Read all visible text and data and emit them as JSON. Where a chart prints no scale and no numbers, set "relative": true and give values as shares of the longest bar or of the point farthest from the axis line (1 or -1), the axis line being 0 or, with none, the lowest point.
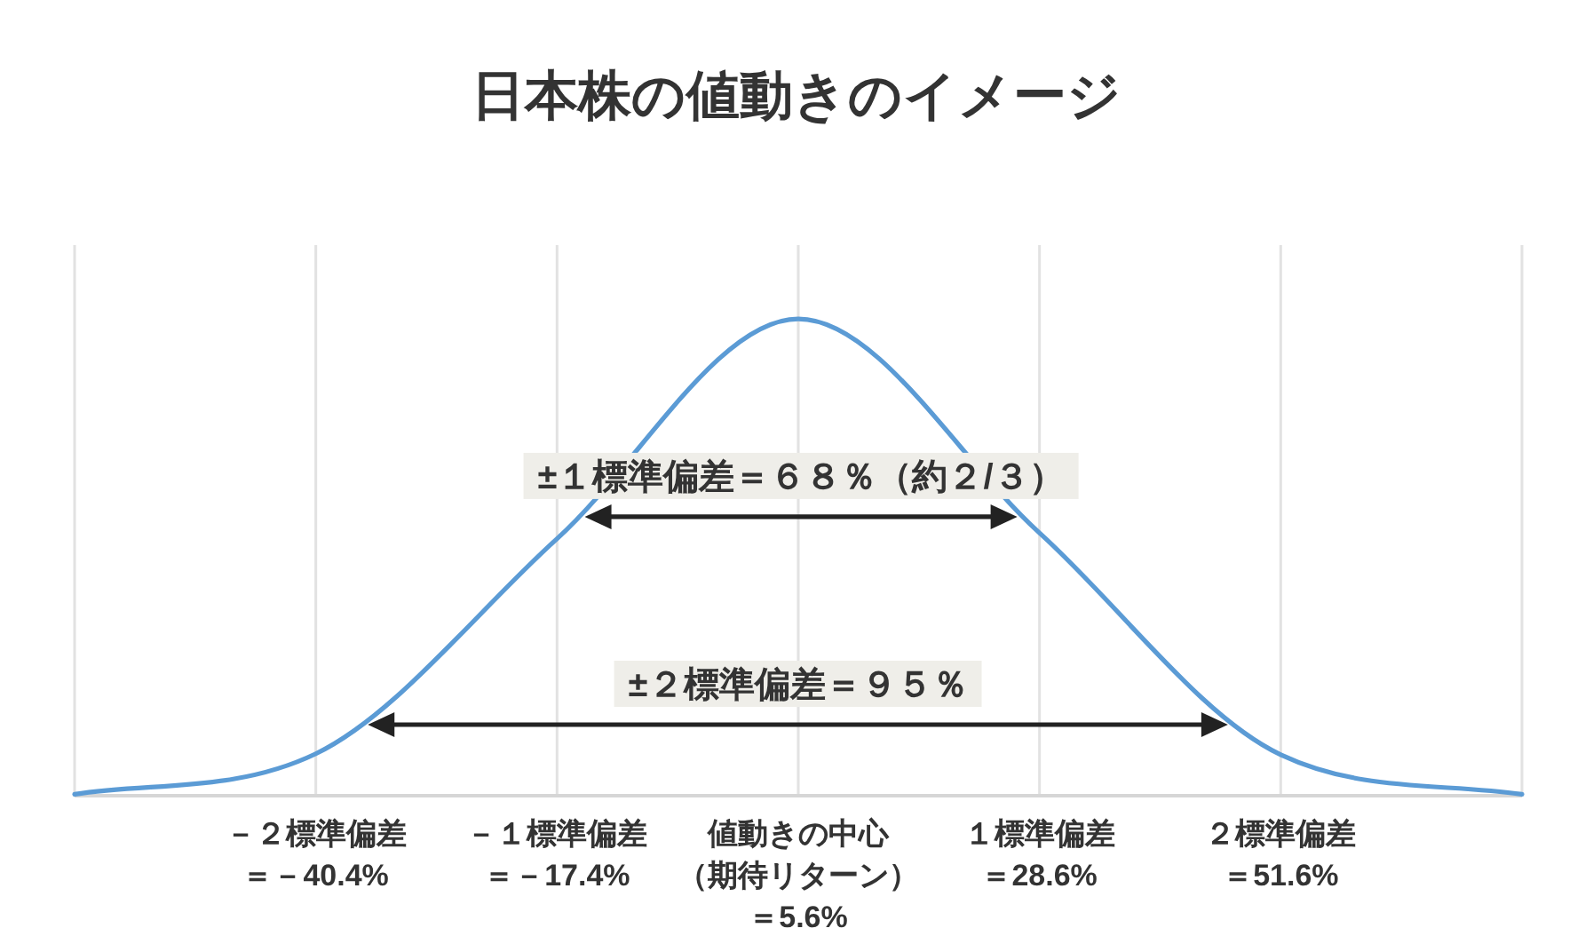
{
  "chart_data": {
    "type": "line",
    "title": "日本株の値動きのイメージ",
    "relative": true,
    "categories": [
      null,
      "－２標準偏差＝－40.4%",
      "－１標準偏差＝－17.4%",
      "値動きの中心（期待リターン）＝5.6%",
      "１標準偏差＝28.6%",
      "２標準偏差＝51.6%",
      null
    ],
    "series": [
      {
        "color": "#5b9bd5",
        "values": [
          0.003,
          0.088,
          0.539,
          1,
          0.551,
          0.086,
          0.003
        ]
      }
    ],
    "grid": "x",
    "tick_labels": "x",
    "annotations": [
      "±１標準偏差＝６８％（約２/３）",
      "±２標準偏差＝９５％"
    ]
  }
}
